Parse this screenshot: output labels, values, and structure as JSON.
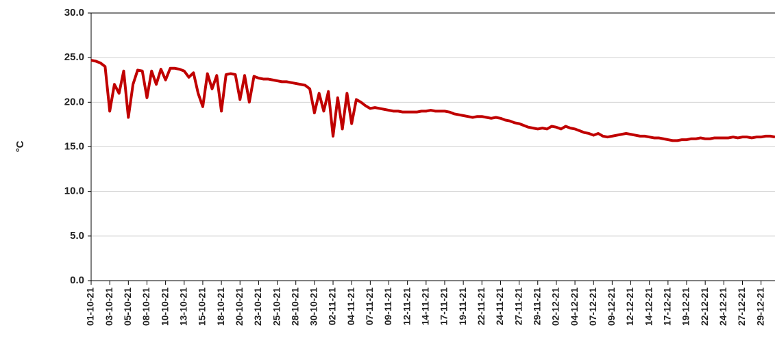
{
  "chart_data": {
    "type": "line",
    "y_label": "°C",
    "categories": [
      "01-10-21",
      null,
      null,
      null,
      "03-10-21",
      null,
      null,
      null,
      "05-10-21",
      null,
      null,
      null,
      "08-10-21",
      null,
      null,
      null,
      "10-10-21",
      null,
      null,
      null,
      "13-10-21",
      null,
      null,
      null,
      "15-10-21",
      null,
      null,
      null,
      "18-10-21",
      null,
      null,
      null,
      "20-10-21",
      null,
      null,
      null,
      "23-10-21",
      null,
      null,
      null,
      "25-10-21",
      null,
      null,
      null,
      "28-10-21",
      null,
      null,
      null,
      "30-10-21",
      null,
      null,
      null,
      "02-11-21",
      null,
      null,
      null,
      "04-11-21",
      null,
      null,
      null,
      "07-11-21",
      null,
      null,
      null,
      "09-11-21",
      null,
      null,
      null,
      "12-11-21",
      null,
      null,
      null,
      "14-11-21",
      null,
      null,
      null,
      "17-11-21",
      null,
      null,
      null,
      "19-11-21",
      null,
      null,
      null,
      "22-11-21",
      null,
      null,
      null,
      "24-11-21",
      null,
      null,
      null,
      "27-11-21",
      null,
      null,
      null,
      "29-11-21",
      null,
      null,
      null,
      "02-12-21",
      null,
      null,
      null,
      "04-12-21",
      null,
      null,
      null,
      "07-12-21",
      null,
      null,
      null,
      "09-12-21",
      null,
      null,
      null,
      "12-12-21",
      null,
      null,
      null,
      "14-12-21",
      null,
      null,
      null,
      "17-12-21",
      null,
      null,
      null,
      "19-12-21",
      null,
      null,
      null,
      "22-12-21",
      null,
      null,
      null,
      "24-12-21",
      null,
      null,
      null,
      "27-12-21",
      null,
      null,
      null,
      "29-12-21",
      null,
      null,
      null
    ],
    "values": [
      24.7,
      24.6,
      24.4,
      24.0,
      19.0,
      22.0,
      21.0,
      23.5,
      18.3,
      22.0,
      23.6,
      23.5,
      20.5,
      23.5,
      22.0,
      23.7,
      22.5,
      23.8,
      23.8,
      23.7,
      23.5,
      22.8,
      23.3,
      21.0,
      19.5,
      23.2,
      21.5,
      23.0,
      19.0,
      23.1,
      23.2,
      23.1,
      20.3,
      23.0,
      20.0,
      22.9,
      22.7,
      22.6,
      22.6,
      22.5,
      22.4,
      22.3,
      22.3,
      22.2,
      22.1,
      22.0,
      21.9,
      21.5,
      18.8,
      21.0,
      19.0,
      21.2,
      16.2,
      20.5,
      17.0,
      21.0,
      17.6,
      20.3,
      20.0,
      19.6,
      19.3,
      19.4,
      19.3,
      19.2,
      19.1,
      19.0,
      19.0,
      18.9,
      18.9,
      18.9,
      18.9,
      19.0,
      19.0,
      19.1,
      19.0,
      19.0,
      19.0,
      18.9,
      18.7,
      18.6,
      18.5,
      18.4,
      18.3,
      18.4,
      18.4,
      18.3,
      18.2,
      18.3,
      18.2,
      18.0,
      17.9,
      17.7,
      17.6,
      17.4,
      17.2,
      17.1,
      17.0,
      17.1,
      17.0,
      17.3,
      17.2,
      17.0,
      17.3,
      17.1,
      17.0,
      16.8,
      16.6,
      16.5,
      16.3,
      16.5,
      16.2,
      16.1,
      16.2,
      16.3,
      16.4,
      16.5,
      16.4,
      16.3,
      16.2,
      16.2,
      16.1,
      16.0,
      16.0,
      15.9,
      15.8,
      15.7,
      15.7,
      15.8,
      15.8,
      15.9,
      15.9,
      16.0,
      15.9,
      15.9,
      16.0,
      16.0,
      16.0,
      16.0,
      16.1,
      16.0,
      16.1,
      16.1,
      16.0,
      16.1,
      16.1,
      16.2,
      16.2,
      16.1
    ],
    "color": "#c00000",
    "ylim": [
      0,
      30
    ],
    "yticks": [
      {
        "value": 0,
        "label": "0.0"
      },
      {
        "value": 5,
        "label": "5.0"
      },
      {
        "value": 10,
        "label": "10.0"
      },
      {
        "value": 15,
        "label": "15.0"
      },
      {
        "value": 20,
        "label": "20.0"
      },
      {
        "value": 25,
        "label": "25.0"
      },
      {
        "value": 30,
        "label": "30.0"
      }
    ],
    "grid": true
  }
}
